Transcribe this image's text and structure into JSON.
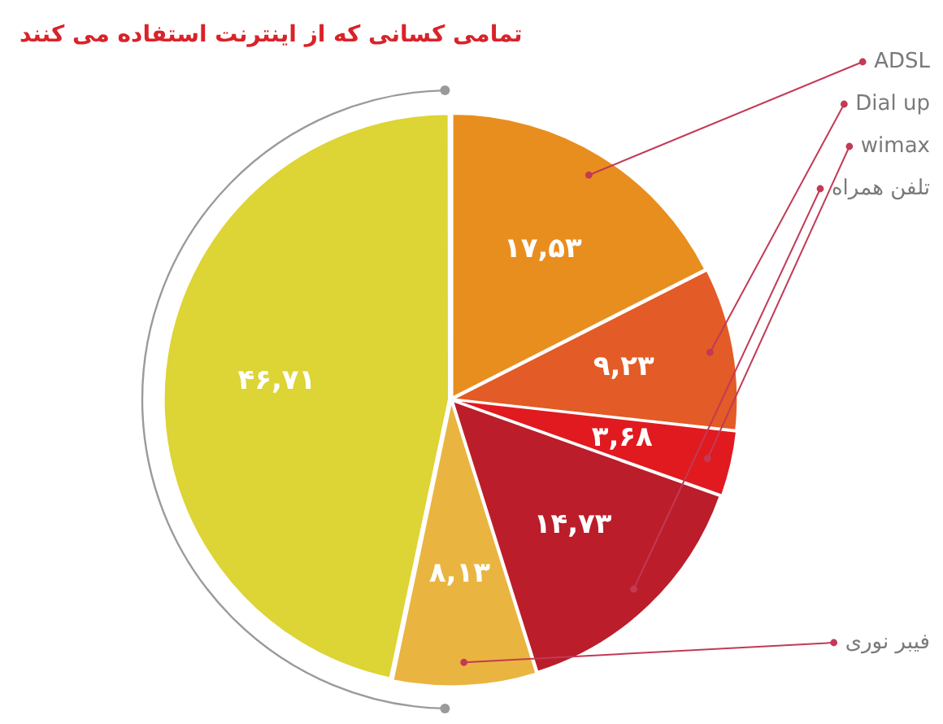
{
  "chart_data": {
    "type": "pie",
    "title": "تمامی کسانی که از اینترنت استفاده می کنند",
    "categories": [
      "ADSL",
      "Dial up",
      "wimax",
      "تلفن همراه",
      "فیبر نوری",
      null
    ],
    "values": [
      17.53,
      9.23,
      3.68,
      14.73,
      8.13,
      46.71
    ],
    "colors": [
      "#e88e1f",
      "#e35b26",
      "#e01a1f",
      "#bb1d2a",
      "#e9b540",
      "#ddd435"
    ],
    "value_labels": [
      "۱۷,۵۳",
      "۹,۲۳",
      "۳,۶۸",
      "۱۴,۷۳",
      "۸,۱۳",
      "۴۶,۷۱"
    ]
  }
}
